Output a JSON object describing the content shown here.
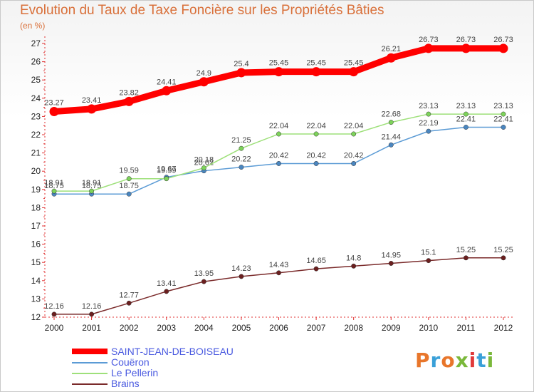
{
  "title": "Evolution du Taux de Taxe Foncière sur les Propriétés Bâties",
  "unit_label": "(en %)",
  "chart_data": {
    "type": "line",
    "title": "Evolution du Taux de Taxe Foncière sur les Propriétés Bâties",
    "ylabel": "(en %)",
    "xlabel": "",
    "ylim": [
      12,
      27
    ],
    "grid": false,
    "x": [
      "2000",
      "2001",
      "2002",
      "2003",
      "2004",
      "2005",
      "2006",
      "2007",
      "2008",
      "2009",
      "2010",
      "2011",
      "2012"
    ],
    "y_ticks": [
      "12",
      "13",
      "14",
      "15",
      "16",
      "17",
      "18",
      "19",
      "20",
      "21",
      "22",
      "23",
      "24",
      "25",
      "26",
      "27"
    ],
    "series": [
      {
        "name": "SAINT-JEAN-DE-BOISEAU",
        "color": "#ff0000",
        "thick": true,
        "values": [
          23.27,
          23.41,
          23.82,
          24.41,
          24.9,
          25.4,
          25.45,
          25.45,
          25.45,
          26.21,
          26.73,
          26.73,
          26.73
        ],
        "labels": [
          "23.27",
          "23.41",
          "23.82",
          "24.41",
          "24.9",
          "25.4",
          "25.45",
          "25.45",
          "25.45",
          "26.21",
          "26.73",
          "26.73",
          "26.73"
        ]
      },
      {
        "name": "Couëron",
        "color": "#5b9bd5",
        "dot": "#4a86c0",
        "values": [
          18.75,
          18.75,
          18.75,
          19.67,
          20.02,
          20.22,
          20.42,
          20.42,
          20.42,
          21.44,
          22.19,
          22.41,
          22.41
        ],
        "labels": [
          "18.75",
          "18.75",
          "18.75",
          "19.67",
          "20.02",
          "20.22",
          "20.42",
          "20.42",
          "20.42",
          "21.44",
          "22.19",
          "22.41",
          "22.41"
        ]
      },
      {
        "name": "Le Pellerin",
        "color": "#9ee07a",
        "dot": "#7dd35a",
        "values": [
          18.91,
          18.91,
          19.59,
          19.59,
          20.18,
          21.25,
          22.04,
          22.04,
          22.04,
          22.68,
          23.13,
          23.13,
          23.13
        ],
        "labels": [
          "18.91",
          "18.91",
          "19.59",
          "19.59",
          "20.18",
          "21.25",
          "22.04",
          "22.04",
          "22.04",
          "22.68",
          "23.13",
          "23.13",
          "23.13"
        ]
      },
      {
        "name": "Brains",
        "color": "#7a2a2a",
        "dot": "#6b1f1f",
        "values": [
          12.16,
          12.16,
          12.77,
          13.41,
          13.95,
          14.23,
          14.43,
          14.65,
          14.8,
          14.95,
          15.1,
          15.25,
          15.25
        ],
        "labels": [
          "12.16",
          "12.16",
          "12.77",
          "13.41",
          "13.95",
          "14.23",
          "14.43",
          "14.65",
          "14.8",
          "14.95",
          "15.1",
          "15.25",
          "15.25"
        ]
      }
    ]
  },
  "legend": [
    {
      "name": "SAINT-JEAN-DE-BOISEAU",
      "color": "#ff0000"
    },
    {
      "name": "Couëron",
      "color": "#5b9bd5"
    },
    {
      "name": "Le Pellerin",
      "color": "#9ee07a"
    },
    {
      "name": "Brains",
      "color": "#7a2a2a"
    }
  ],
  "logo": {
    "text": "Proxiti"
  }
}
